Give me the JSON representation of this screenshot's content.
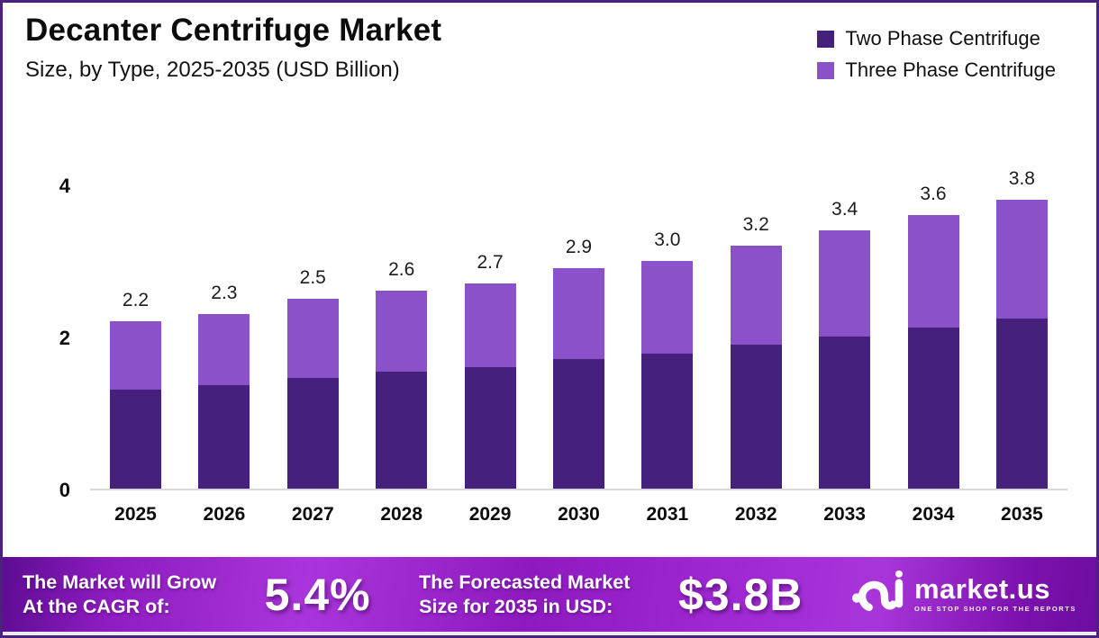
{
  "chart_data": {
    "type": "bar",
    "stacked": true,
    "title": "Decanter Centrifuge Market",
    "subtitle": "Size, by Type, 2025-2035 (USD Billion)",
    "categories": [
      "2025",
      "2026",
      "2027",
      "2028",
      "2029",
      "2030",
      "2031",
      "2032",
      "2033",
      "2034",
      "2035"
    ],
    "series": [
      {
        "name": "Two Phase Centrifuge",
        "color": "#46207d",
        "values": [
          1.3,
          1.36,
          1.46,
          1.54,
          1.6,
          1.71,
          1.78,
          1.89,
          2.0,
          2.12,
          2.24
        ]
      },
      {
        "name": "Three Phase Centrifuge",
        "color": "#8b51c9",
        "values": [
          0.9,
          0.94,
          1.04,
          1.06,
          1.1,
          1.19,
          1.22,
          1.31,
          1.4,
          1.48,
          1.56
        ]
      }
    ],
    "totals": [
      "2.2",
      "2.3",
      "2.5",
      "2.6",
      "2.7",
      "2.9",
      "3.0",
      "3.2",
      "3.4",
      "3.6",
      "3.8"
    ],
    "ylabel": "",
    "xlabel": "",
    "ylim": [
      0,
      4
    ],
    "yticks": [
      0,
      2,
      4
    ],
    "grid": false,
    "legend_position": "top-right"
  },
  "footer": {
    "cagr_label_line1": "The Market will Grow",
    "cagr_label_line2": "At the CAGR of:",
    "cagr_value": "5.4%",
    "forecast_label_line1": "The Forecasted Market",
    "forecast_label_line2": "Size for 2035 in USD:",
    "forecast_value": "$3.8B",
    "brand_name": "market.us",
    "brand_tagline": "ONE STOP SHOP FOR THE REPORTS"
  },
  "colors": {
    "border": "#4b2180",
    "axis_line": "#d9d9d9",
    "banner_left": "#5c0c92",
    "banner_bright": "#aa35dc"
  }
}
